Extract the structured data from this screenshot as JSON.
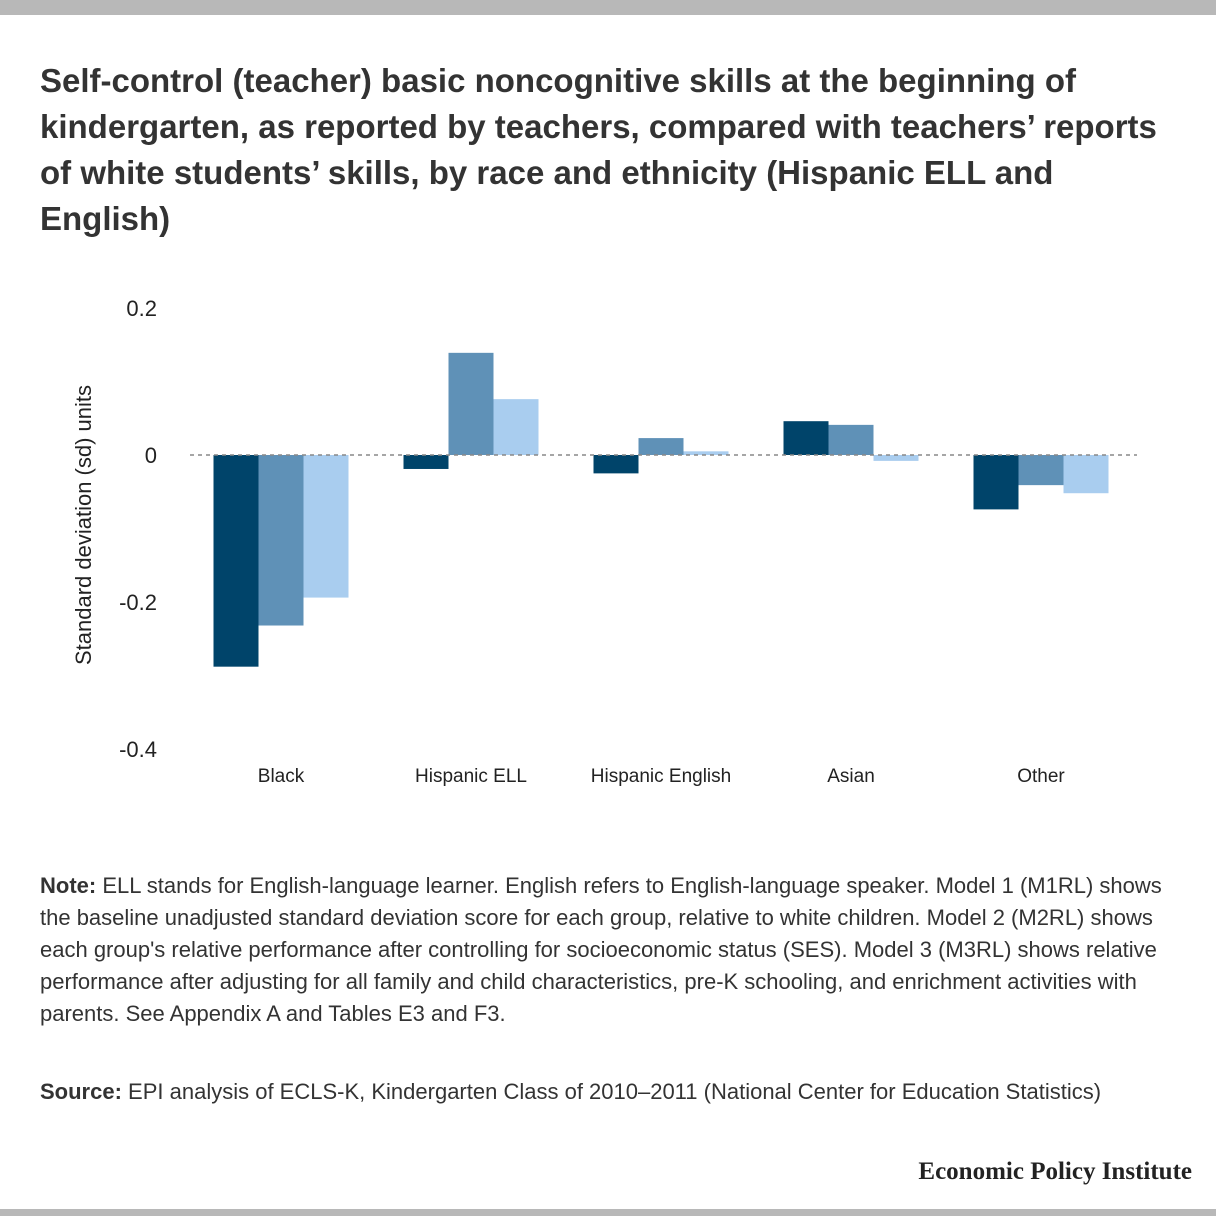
{
  "chart_data": {
    "type": "bar",
    "title": "Self-control (teacher) basic noncognitive skills at the beginning of kindergarten, as reported by teachers, compared with teachers’ reports of white students’ skills, by race and ethnicity (Hispanic ELL and English)",
    "y_label": "Standard deviation (sd) units",
    "categories": [
      "Black",
      "Hispanic ELL",
      "Hispanic English",
      "Asian",
      "Other"
    ],
    "series": [
      {
        "color": "#00446a",
        "values": [
          -0.288,
          -0.019,
          -0.025,
          0.046,
          -0.074
        ]
      },
      {
        "color": "#5f91b7",
        "values": [
          -0.232,
          0.139,
          0.023,
          0.041,
          -0.041
        ]
      },
      {
        "color": "#a9cdef",
        "values": [
          -0.194,
          0.076,
          0.005,
          -0.008,
          -0.052
        ]
      }
    ],
    "ylim": [
      -0.4,
      0.2
    ],
    "yticks": [
      0.2,
      0,
      -0.2,
      -0.4
    ],
    "grid": false,
    "note_label": "Note:",
    "note": "ELL stands for English-language learner. English refers to English-language speaker. Model 1 (M1RL) shows the baseline unadjusted standard deviation score for each group, relative to white children. Model 2 (M2RL) shows each group's relative performance after controlling for socioeconomic status (SES). Model 3 (M3RL) shows relative performance after adjusting for all family and child characteristics, pre-K schooling, and enrichment activities with parents. See Appendix A and Tables E3 and F3.",
    "source_label": "Source:",
    "source": "EPI analysis of ECLS-K, Kindergarten Class of 2010–2011 (National Center for Education Statistics)",
    "branding": "Economic Policy Institute"
  }
}
